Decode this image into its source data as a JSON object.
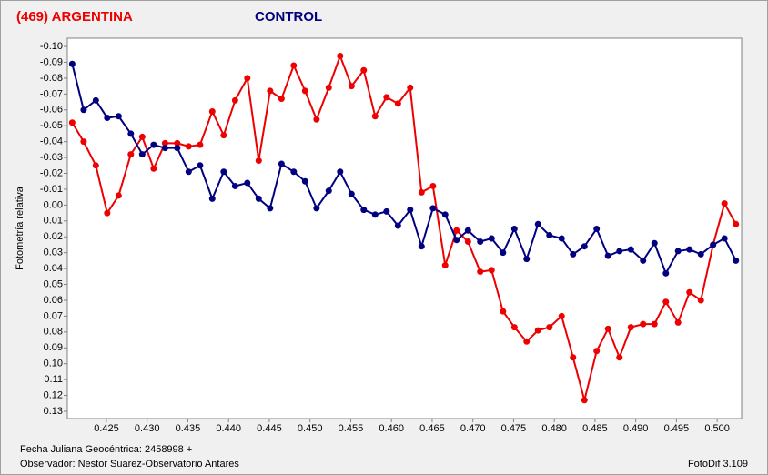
{
  "chart_data": {
    "type": "line",
    "y_label": "Fotometría relativa",
    "y_inverted": true,
    "xlim": [
      0.4202,
      0.503
    ],
    "ylim": [
      -0.1052,
      0.1346
    ],
    "xticks": [
      0.425,
      {
        "value": 0.43,
        "label": "0.430"
      },
      0.435,
      {
        "value": 0.44,
        "label": "0.440"
      },
      0.445,
      {
        "value": 0.45,
        "label": "0.450"
      },
      0.455,
      {
        "value": 0.46,
        "label": "0.460"
      },
      0.465,
      {
        "value": 0.47,
        "label": "0.470"
      },
      0.475,
      {
        "value": 0.48,
        "label": "0.480"
      },
      0.485,
      {
        "value": 0.49,
        "label": "0.490"
      },
      0.495,
      {
        "value": 0.5,
        "label": "0.500"
      }
    ],
    "yticks": [
      {
        "value": -0.1,
        "label": "-0.10"
      },
      -0.09,
      -0.08,
      -0.07,
      -0.06,
      -0.05,
      -0.04,
      -0.03,
      -0.02,
      -0.01,
      {
        "value": 0,
        "label": "0.00"
      },
      0.01,
      0.02,
      0.03,
      0.04,
      0.05,
      0.06,
      0.07,
      0.08,
      0.09,
      {
        "value": 0.1,
        "label": "0.10"
      },
      0.11,
      0.12,
      0.13
    ],
    "x": [
      0.4208,
      0.4222,
      0.4237,
      0.4251,
      0.4265,
      0.428,
      0.4294,
      0.4308,
      0.4322,
      0.4337,
      0.4351,
      0.4365,
      0.438,
      0.4394,
      0.4408,
      0.4423,
      0.4437,
      0.4451,
      0.4465,
      0.448,
      0.4494,
      0.4508,
      0.4523,
      0.4537,
      0.4551,
      0.4566,
      0.458,
      0.4594,
      0.4608,
      0.4623,
      0.4637,
      0.4651,
      0.4666,
      0.468,
      0.4694,
      0.4709,
      0.4723,
      0.4737,
      0.4751,
      0.4766,
      0.478,
      0.4794,
      0.4809,
      0.4823,
      0.4837,
      0.4852,
      0.4866,
      0.488,
      0.4894,
      0.4909,
      0.4923,
      0.4937,
      0.4952,
      0.4966,
      0.498,
      0.4995,
      0.5009,
      0.5023
    ],
    "series": [
      {
        "name": "(469) ARGENTINA",
        "color": "#ee0000",
        "values": [
          -0.052,
          -0.04,
          -0.025,
          0.005,
          -0.006,
          -0.032,
          -0.043,
          -0.023,
          -0.039,
          -0.039,
          -0.037,
          -0.038,
          -0.059,
          -0.044,
          -0.066,
          -0.08,
          -0.028,
          -0.072,
          -0.067,
          -0.088,
          -0.072,
          -0.054,
          -0.074,
          -0.094,
          -0.075,
          -0.085,
          -0.056,
          -0.068,
          -0.064,
          -0.074,
          -0.008,
          -0.012,
          0.038,
          0.016,
          0.023,
          0.042,
          0.041,
          0.067,
          0.077,
          0.086,
          0.079,
          0.077,
          0.07,
          0.096,
          0.123,
          0.092,
          0.078,
          0.096,
          0.077,
          0.075,
          0.075,
          0.061,
          0.074,
          0.055,
          0.06,
          0.025,
          -0.001,
          0.012
        ]
      },
      {
        "name": "CONTROL",
        "color": "#000080",
        "values": [
          -0.089,
          -0.06,
          -0.066,
          -0.055,
          -0.056,
          -0.045,
          -0.032,
          -0.038,
          -0.036,
          -0.036,
          -0.021,
          -0.025,
          -0.004,
          -0.021,
          -0.012,
          -0.014,
          -0.004,
          0.002,
          -0.026,
          -0.021,
          -0.015,
          0.002,
          -0.009,
          -0.021,
          -0.007,
          0.003,
          0.006,
          0.004,
          0.013,
          0.003,
          0.026,
          0.002,
          0.006,
          0.022,
          0.016,
          0.023,
          0.021,
          0.03,
          0.015,
          0.034,
          0.012,
          0.019,
          0.021,
          0.031,
          0.026,
          0.015,
          0.032,
          0.029,
          0.028,
          0.035,
          0.024,
          0.043,
          0.029,
          0.028,
          0.031,
          0.025,
          0.021,
          0.035
        ]
      }
    ],
    "footer": {
      "date_label": "Fecha Juliana Geocéntrica: 2458998 +",
      "observer": "Observador: Nestor Suarez-Observatorio Antares",
      "software": "FotoDif 3.109"
    }
  }
}
